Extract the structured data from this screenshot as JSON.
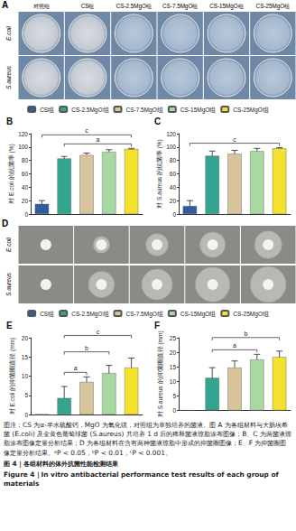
{
  "panel_A": {
    "label": "A",
    "columns": [
      "对照组",
      "CS组",
      "CS-2.5MgO组",
      "CS-7.5MgO组",
      "CS-15MgO组",
      "CS-25MgO组"
    ],
    "rows": [
      "E.coli",
      "S.aureus"
    ]
  },
  "panel_D": {
    "label": "D",
    "rows": [
      "E.coli",
      "S.aureus"
    ]
  },
  "chart_data": [
    {
      "type": "bar",
      "title": "B",
      "categories": [
        "CS组",
        "CS-2.5MgO组",
        "CS-7.5MgO组",
        "CS-15MgO组",
        "CS-25MgO组"
      ],
      "values": [
        15,
        83,
        88,
        93,
        97
      ],
      "errors": [
        5,
        3,
        3,
        3,
        1
      ],
      "colors": [
        "#2f5d9e",
        "#33a48f",
        "#d8c49b",
        "#a9d9a3",
        "#f3e12c"
      ],
      "y_label": "对 E.coli 的抗菌率 (%)",
      "ylim": [
        0,
        120
      ],
      "yticks": [
        0,
        20,
        40,
        60,
        80,
        100,
        120
      ],
      "grid": false,
      "legend": "top",
      "tick_labels": "y",
      "annotations": [
        {
          "from": "CS-2.5MgO组",
          "to": "CS-25MgO组",
          "text": "a"
        },
        {
          "from": "CS组",
          "to": "CS-25MgO组",
          "text": "c"
        }
      ]
    },
    {
      "type": "bar",
      "title": "C",
      "categories": [
        "CS组",
        "CS-2.5MgO组",
        "CS-7.5MgO组",
        "CS-15MgO组",
        "CS-25MgO组"
      ],
      "values": [
        12,
        87,
        90,
        94,
        98
      ],
      "errors": [
        8,
        7,
        5,
        4,
        1
      ],
      "colors": [
        "#2f5d9e",
        "#33a48f",
        "#d8c49b",
        "#a9d9a3",
        "#f3e12c"
      ],
      "y_label": "对 S.aureus 的抗菌率 (%)",
      "ylim": [
        0,
        120
      ],
      "yticks": [
        0,
        20,
        40,
        60,
        80,
        100,
        120
      ],
      "grid": false,
      "tick_labels": "y",
      "annotations": [
        {
          "from": "CS组",
          "to": "CS-25MgO组",
          "text": "c"
        }
      ]
    },
    {
      "type": "bar",
      "title": "E",
      "categories": [
        "CS组",
        "CS-2.5MgO组",
        "CS-7.5MgO组",
        "CS-15MgO组",
        "CS-25MgO组"
      ],
      "values": [
        0,
        4.3,
        8.5,
        10.8,
        12.2
      ],
      "errors": [
        0,
        3,
        1.3,
        2,
        2.5
      ],
      "colors": [
        "#2f5d9e",
        "#33a48f",
        "#d8c49b",
        "#a9d9a3",
        "#f3e12c"
      ],
      "y_label": "对 E.coli 的抑菌圈直径 (mm)",
      "ylim": [
        0,
        20
      ],
      "yticks": [
        0,
        5,
        10,
        15,
        20
      ],
      "grid": false,
      "legend": "top",
      "tick_labels": "y",
      "annotations": [
        {
          "from": "CS-2.5MgO组",
          "to": "CS-7.5MgO组",
          "text": "a"
        },
        {
          "from": "CS-2.5MgO组",
          "to": "CS-15MgO组",
          "text": "b"
        },
        {
          "from": "CS-2.5MgO组",
          "to": "CS-25MgO组",
          "text": "c"
        }
      ]
    },
    {
      "type": "bar",
      "title": "F",
      "categories": [
        "CS组",
        "CS-2.5MgO组",
        "CS-7.5MgO组",
        "CS-15MgO组",
        "CS-25MgO组"
      ],
      "values": [
        0,
        11.2,
        14.7,
        17.5,
        18.4
      ],
      "errors": [
        0,
        3.5,
        2.3,
        1.8,
        2
      ],
      "colors": [
        "#2f5d9e",
        "#33a48f",
        "#d8c49b",
        "#a9d9a3",
        "#f3e12c"
      ],
      "y_label": "对 S.aureus 的抑菌圈直径 (mm)",
      "ylim": [
        0,
        25
      ],
      "yticks": [
        0,
        5,
        10,
        15,
        20,
        25
      ],
      "grid": false,
      "tick_labels": "y",
      "annotations": [
        {
          "from": "CS-2.5MgO组",
          "to": "CS-15MgO组",
          "text": "a"
        },
        {
          "from": "CS-2.5MgO组",
          "to": "CS-25MgO组",
          "text": "b"
        }
      ]
    }
  ],
  "caption": {
    "note": "图注：CS 为α-半水硫酸钙，MgO 为氧化镁，对照组为单独培养的菌液。图 A 为各组材料与大肠埃希菌 (E.coli) 及金黄色葡萄球菌 (S.aureus) 共培养 1 d 后的稀释菌液琼脂涂布图像；B、C 为两菌液琼脂涂布图像定量分析结果；D 为各组材料在含有两种菌液琼脂中形成的抑菌圈图像；E、F 为抑菌圈图像定量分析结果。ᵃP < 0.05，ᵇP < 0.01，ᶜP < 0.001。",
    "title_zh": "图 4｜各组材料的体外抗菌性能检测结果",
    "title_en": "Figure 4｜In vitro antibacterial performance test results of each group of materials"
  }
}
